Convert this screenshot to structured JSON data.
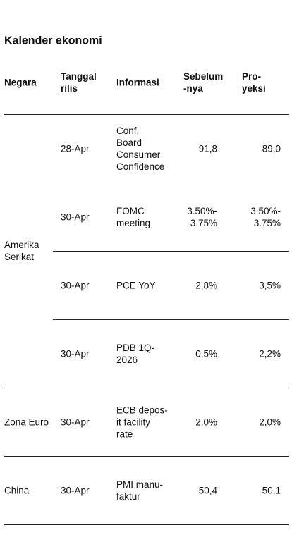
{
  "title": "Kalender ekonomi",
  "table": {
    "headers": [
      "Negara",
      "Tanggal\nrilis",
      "Informasi",
      "Sebelum\n-nya",
      "Pro-\nyeksi"
    ],
    "groups": [
      {
        "country": "Amerika\nSerikat",
        "rows": [
          [
            "28-Apr",
            "Conf.\nBoard\nConsumer\nConfidence",
            "91,8",
            "89,0"
          ],
          [
            "30-Apr",
            "FOMC\nmeeting",
            "3.50%-\n3.75%",
            "3.50%-\n3.75%"
          ],
          [
            "30-Apr",
            "PCE YoY",
            "2,8%",
            "3,5%"
          ],
          [
            "30-Apr",
            "PDB 1Q-\n2026",
            "0,5%",
            "2,2%"
          ]
        ]
      },
      {
        "country": "Zona Euro",
        "rows": [
          [
            "30-Apr",
            "ECB depos-\nit facility\nrate",
            "2,0%",
            "2,0%"
          ]
        ]
      },
      {
        "country": "China",
        "rows": [
          [
            "30-Apr",
            "PMI manu-\nfaktur",
            "50,4",
            "50,1"
          ]
        ]
      }
    ]
  }
}
